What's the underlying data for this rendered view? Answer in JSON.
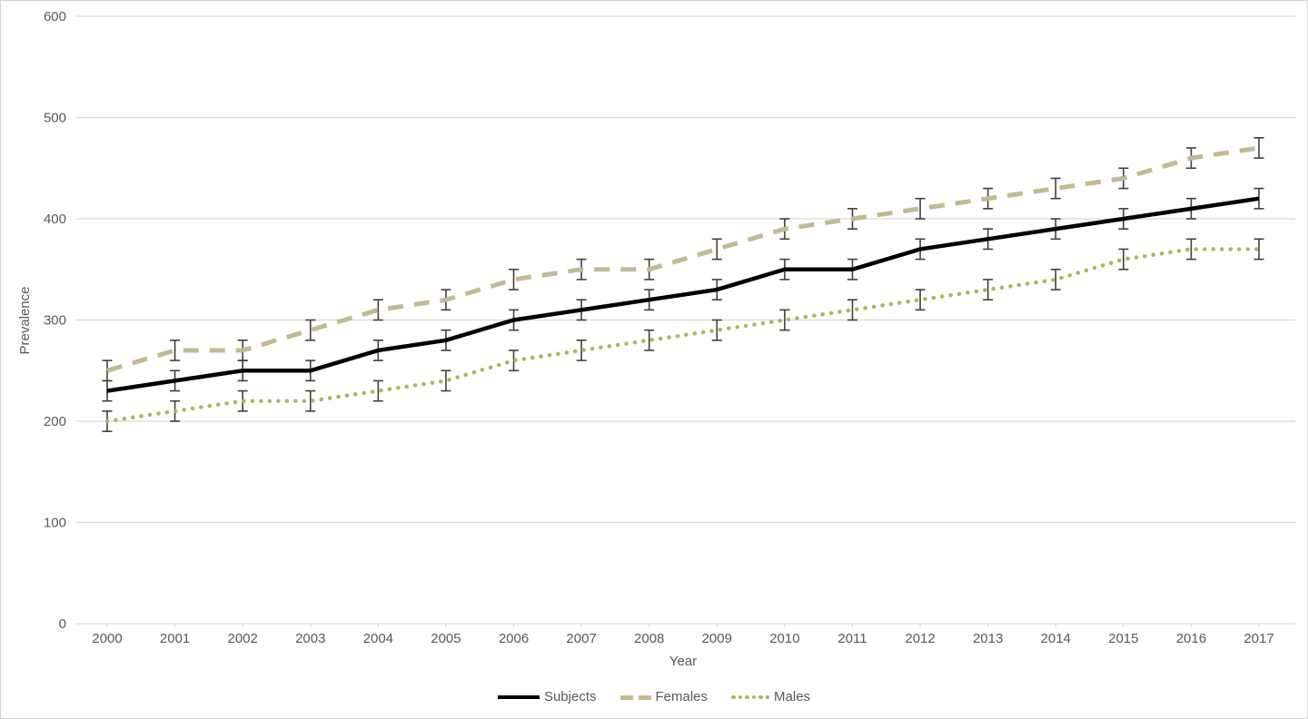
{
  "chart": {
    "background": "#ffffff",
    "border_color": "#d5d5d5"
  },
  "chart_data": {
    "type": "line",
    "title": "",
    "xlabel": "Year",
    "ylabel": "Prevalence",
    "x": [
      2000,
      2001,
      2002,
      2003,
      2004,
      2005,
      2006,
      2007,
      2008,
      2009,
      2010,
      2011,
      2012,
      2013,
      2014,
      2015,
      2016,
      2017
    ],
    "ylim": [
      0,
      600
    ],
    "yticks": [
      0,
      100,
      200,
      300,
      400,
      500,
      600
    ],
    "grid": "horizontal-only",
    "grid_color": "#d9d9d9",
    "tick_label_color": "#595959",
    "error_bar_color": "#404040",
    "legend_position": "bottom-center",
    "series": [
      {
        "name": "Subjects",
        "color": "#000000",
        "style": "solid",
        "error": 10,
        "values": [
          230,
          240,
          250,
          250,
          270,
          280,
          300,
          310,
          320,
          330,
          350,
          350,
          370,
          380,
          390,
          400,
          410,
          420
        ]
      },
      {
        "name": "Females",
        "color": "#c3ba92",
        "style": "dashed",
        "error": 10,
        "values": [
          250,
          270,
          270,
          290,
          310,
          320,
          340,
          350,
          350,
          370,
          390,
          400,
          410,
          420,
          430,
          440,
          460,
          470
        ]
      },
      {
        "name": "Males",
        "color": "#9fbe5f",
        "style": "dotted",
        "error": 10,
        "values": [
          200,
          210,
          220,
          220,
          230,
          240,
          260,
          270,
          280,
          290,
          300,
          310,
          320,
          330,
          340,
          360,
          370,
          370
        ]
      }
    ]
  }
}
